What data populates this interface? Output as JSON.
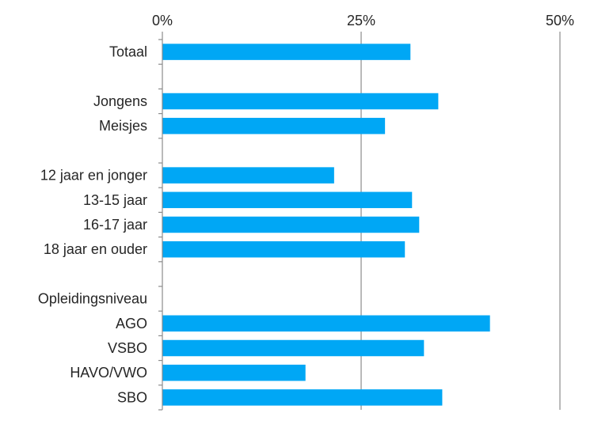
{
  "chart_data": {
    "type": "bar",
    "orientation": "horizontal",
    "title": "",
    "xlabel": "",
    "ylabel": "",
    "xlim": [
      0,
      50
    ],
    "x_ticks": [
      0,
      25,
      50
    ],
    "x_tick_labels": [
      "0%",
      "25%",
      "50%"
    ],
    "grid": "vertical at 25% and 50%",
    "legend": "none",
    "bar_color": "#00A7F5",
    "categories": [
      "Totaal",
      "",
      "Jongens",
      "Meisjes",
      "",
      "12 jaar en jonger",
      "13-15 jaar",
      "16-17 jaar",
      "18 jaar en ouder",
      "",
      "Opleidingsniveau",
      "AGO",
      "VSBO",
      "HAVO/VWO",
      "SBO"
    ],
    "values": [
      31.2,
      null,
      34.7,
      28.0,
      null,
      21.6,
      31.4,
      32.3,
      30.5,
      null,
      null,
      41.2,
      32.9,
      18.0,
      35.2
    ]
  }
}
